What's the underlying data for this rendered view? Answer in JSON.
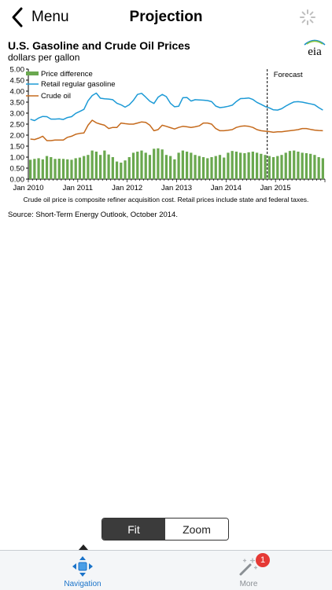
{
  "header": {
    "back_label": "Menu",
    "title": "Projection"
  },
  "chart_header": {
    "title": "U.S. Gasoline and Crude Oil Prices",
    "subtitle": "dollars per gallon",
    "logo_text": "eia"
  },
  "chart_data": {
    "type": "line",
    "title": "U.S. Gasoline and Crude Oil Prices",
    "ylabel": "dollars per gallon",
    "ylim": [
      0,
      5
    ],
    "y_ticks": [
      "0.00",
      "0.50",
      "1.00",
      "1.50",
      "2.00",
      "2.50",
      "3.00",
      "3.50",
      "4.00",
      "4.50",
      "5.00"
    ],
    "x_ticks": [
      "Jan 2010",
      "Jan 2011",
      "Jan 2012",
      "Jan 2013",
      "Jan 2014",
      "Jan 2015"
    ],
    "forecast_label": "Forecast",
    "forecast_start_month": 58,
    "legend_position": "top-left",
    "series": [
      {
        "name": "Price difference",
        "kind": "bar",
        "color": "#6aa84f",
        "values": [
          0.88,
          0.92,
          0.95,
          0.9,
          1.05,
          1.0,
          0.92,
          0.93,
          0.92,
          0.9,
          0.88,
          0.95,
          0.98,
          1.05,
          1.1,
          1.3,
          1.25,
          1.1,
          1.3,
          1.12,
          1.0,
          0.8,
          0.75,
          0.85,
          1.0,
          1.2,
          1.25,
          1.3,
          1.2,
          1.1,
          1.38,
          1.4,
          1.35,
          1.1,
          1.05,
          0.9,
          1.2,
          1.3,
          1.25,
          1.2,
          1.1,
          1.05,
          1.0,
          0.95,
          1.0,
          1.05,
          1.1,
          0.98,
          1.2,
          1.28,
          1.25,
          1.2,
          1.18,
          1.22,
          1.25,
          1.2,
          1.15,
          1.1,
          1.05,
          1.0,
          1.05,
          1.1,
          1.2,
          1.28,
          1.3,
          1.25,
          1.2,
          1.18,
          1.15,
          1.1,
          1.0,
          0.95
        ]
      },
      {
        "name": "Retail regular gasoline",
        "kind": "line",
        "color": "#1c9ad6",
        "values": [
          2.72,
          2.66,
          2.78,
          2.85,
          2.84,
          2.73,
          2.73,
          2.74,
          2.71,
          2.8,
          2.84,
          2.99,
          3.08,
          3.17,
          3.56,
          3.8,
          3.91,
          3.68,
          3.65,
          3.64,
          3.61,
          3.45,
          3.38,
          3.27,
          3.38,
          3.58,
          3.85,
          3.9,
          3.73,
          3.54,
          3.44,
          3.72,
          3.85,
          3.75,
          3.45,
          3.29,
          3.31,
          3.7,
          3.71,
          3.55,
          3.61,
          3.6,
          3.59,
          3.57,
          3.52,
          3.32,
          3.25,
          3.27,
          3.31,
          3.36,
          3.53,
          3.66,
          3.67,
          3.69,
          3.62,
          3.49,
          3.4,
          3.3,
          3.24,
          3.15,
          3.14,
          3.2,
          3.32,
          3.42,
          3.51,
          3.52,
          3.5,
          3.46,
          3.42,
          3.38,
          3.25,
          3.14
        ]
      },
      {
        "name": "Crude oil",
        "kind": "line",
        "color": "#c56a1c",
        "values": [
          1.82,
          1.8,
          1.86,
          1.95,
          1.75,
          1.75,
          1.78,
          1.78,
          1.78,
          1.9,
          1.95,
          2.04,
          2.08,
          2.1,
          2.45,
          2.68,
          2.56,
          2.5,
          2.45,
          2.3,
          2.35,
          2.35,
          2.55,
          2.52,
          2.5,
          2.5,
          2.55,
          2.6,
          2.58,
          2.45,
          2.2,
          2.25,
          2.45,
          2.4,
          2.34,
          2.28,
          2.35,
          2.4,
          2.38,
          2.35,
          2.38,
          2.42,
          2.55,
          2.55,
          2.5,
          2.3,
          2.2,
          2.2,
          2.22,
          2.25,
          2.35,
          2.4,
          2.42,
          2.4,
          2.35,
          2.25,
          2.2,
          2.18,
          2.16,
          2.13,
          2.15,
          2.15,
          2.18,
          2.2,
          2.22,
          2.25,
          2.3,
          2.3,
          2.26,
          2.23,
          2.21,
          2.2
        ]
      }
    ]
  },
  "notes": {
    "composite": "Crude oil price is composite refiner acquisition cost.  Retail prices include state and federal taxes.",
    "source": "Source: Short-Term Energy Outlook, October 2014."
  },
  "segmented": {
    "fit": "Fit",
    "zoom": "Zoom",
    "selected": "Fit"
  },
  "tabbar": {
    "navigation": "Navigation",
    "more": "More",
    "more_badge": "1"
  },
  "colors": {
    "accent": "#1a73c9",
    "badge": "#e53935",
    "bar": "#6aa84f",
    "gasoline": "#1c9ad6",
    "crude": "#c56a1c"
  }
}
